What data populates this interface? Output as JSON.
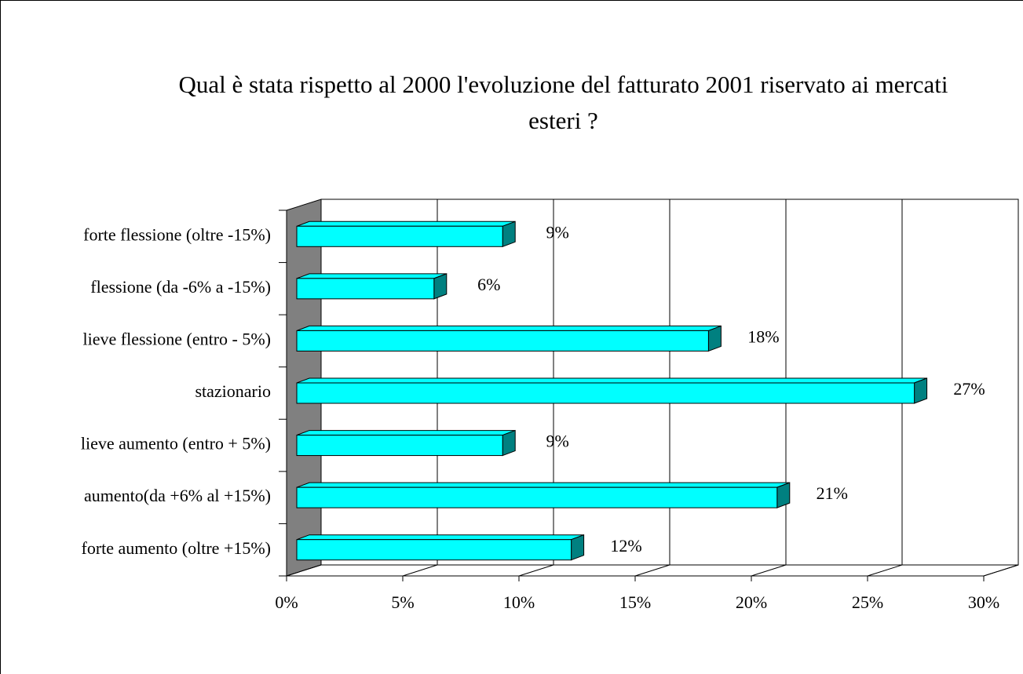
{
  "chart_data": {
    "type": "bar3d_horizontal",
    "title": "Qual è stata rispetto al 2000 l'evoluzione del fatturato 2001 riservato ai mercati esteri ?",
    "categories": [
      "forte flessione (oltre -15%)",
      "flessione (da -6% a -15%)",
      "lieve flessione (entro - 5%)",
      "stazionario",
      "lieve aumento (entro + 5%)",
      "aumento(da +6% al +15%)",
      "forte aumento (oltre +15%)"
    ],
    "values": [
      9,
      6,
      18,
      27,
      9,
      21,
      12
    ],
    "value_labels": [
      "9%",
      "6%",
      "18%",
      "27%",
      "9%",
      "21%",
      "12%"
    ],
    "color": "#00ffff",
    "xlim": [
      0,
      30
    ],
    "xticks": [
      {
        "value": 0,
        "label": "0%"
      },
      {
        "value": 5,
        "label": "5%"
      },
      {
        "value": 10,
        "label": "10%"
      },
      {
        "value": 15,
        "label": "15%"
      },
      {
        "value": 20,
        "label": "20%"
      },
      {
        "value": 25,
        "label": "25%"
      },
      {
        "value": 30,
        "label": "30%"
      }
    ],
    "grid": true
  }
}
